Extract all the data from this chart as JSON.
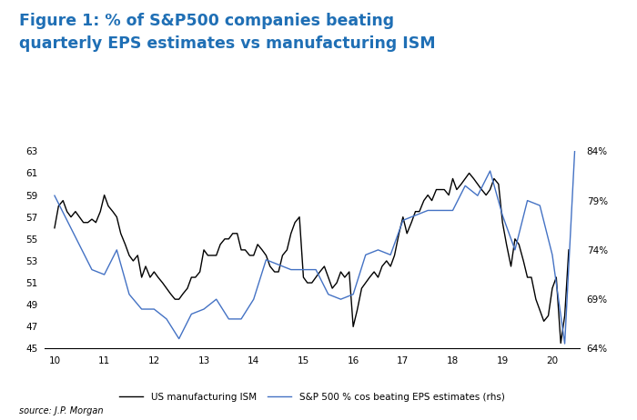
{
  "title_line1": "Figure 1: % of S&P500 companies beating",
  "title_line2": "quarterly EPS estimates vs manufacturing ISM",
  "title_color": "#1F6FB5",
  "source_text": "source: J.P. Morgan",
  "legend_ism": "US manufacturing ISM",
  "legend_eps": "S&P 500 % cos beating EPS estimates (rhs)",
  "ism_color": "#000000",
  "eps_color": "#4472C4",
  "ylim_left": [
    45,
    63
  ],
  "ylim_right": [
    64,
    84
  ],
  "yticks_left": [
    45,
    47,
    49,
    51,
    53,
    55,
    57,
    59,
    61,
    63
  ],
  "yticks_right": [
    64,
    69,
    74,
    79,
    84
  ],
  "xticks": [
    10,
    11,
    12,
    13,
    14,
    15,
    16,
    17,
    18,
    19,
    20
  ],
  "xlim": [
    9.8,
    20.55
  ],
  "ism_x": [
    10.0,
    10.08,
    10.17,
    10.25,
    10.33,
    10.42,
    10.5,
    10.58,
    10.67,
    10.75,
    10.83,
    10.92,
    11.0,
    11.08,
    11.17,
    11.25,
    11.33,
    11.42,
    11.5,
    11.58,
    11.67,
    11.75,
    11.83,
    11.92,
    12.0,
    12.08,
    12.17,
    12.25,
    12.33,
    12.42,
    12.5,
    12.58,
    12.67,
    12.75,
    12.83,
    12.92,
    13.0,
    13.08,
    13.17,
    13.25,
    13.33,
    13.42,
    13.5,
    13.58,
    13.67,
    13.75,
    13.83,
    13.92,
    14.0,
    14.08,
    14.17,
    14.25,
    14.33,
    14.42,
    14.5,
    14.58,
    14.67,
    14.75,
    14.83,
    14.92,
    15.0,
    15.08,
    15.17,
    15.25,
    15.33,
    15.42,
    15.5,
    15.58,
    15.67,
    15.75,
    15.83,
    15.92,
    16.0,
    16.08,
    16.17,
    16.25,
    16.33,
    16.42,
    16.5,
    16.58,
    16.67,
    16.75,
    16.83,
    16.92,
    17.0,
    17.08,
    17.17,
    17.25,
    17.33,
    17.42,
    17.5,
    17.58,
    17.67,
    17.75,
    17.83,
    17.92,
    18.0,
    18.08,
    18.17,
    18.25,
    18.33,
    18.42,
    18.5,
    18.58,
    18.67,
    18.75,
    18.83,
    18.92,
    19.0,
    19.08,
    19.17,
    19.25,
    19.33,
    19.42,
    19.5,
    19.58,
    19.67,
    19.75,
    19.83,
    19.92,
    20.0,
    20.08,
    20.17,
    20.25,
    20.33
  ],
  "ism_y": [
    56.0,
    58.0,
    58.5,
    57.5,
    57.0,
    57.5,
    57.0,
    56.5,
    56.5,
    56.8,
    56.5,
    57.5,
    59.0,
    58.0,
    57.5,
    57.0,
    55.5,
    54.5,
    53.5,
    53.0,
    53.5,
    51.5,
    52.5,
    51.5,
    52.0,
    51.5,
    51.0,
    50.5,
    50.0,
    49.5,
    49.5,
    50.0,
    50.5,
    51.5,
    51.5,
    52.0,
    54.0,
    53.5,
    53.5,
    53.5,
    54.5,
    55.0,
    55.0,
    55.5,
    55.5,
    54.0,
    54.0,
    53.5,
    53.5,
    54.5,
    54.0,
    53.5,
    52.5,
    52.0,
    52.0,
    53.5,
    54.0,
    55.5,
    56.5,
    57.0,
    51.5,
    51.0,
    51.0,
    51.5,
    52.0,
    52.5,
    51.5,
    50.5,
    51.0,
    52.0,
    51.5,
    52.0,
    47.0,
    48.5,
    50.5,
    51.0,
    51.5,
    52.0,
    51.5,
    52.5,
    53.0,
    52.5,
    53.5,
    55.5,
    57.0,
    55.5,
    56.5,
    57.5,
    57.5,
    58.5,
    59.0,
    58.5,
    59.5,
    59.5,
    59.5,
    59.0,
    60.5,
    59.5,
    60.0,
    60.5,
    61.0,
    60.5,
    60.0,
    59.5,
    59.0,
    59.5,
    60.5,
    60.0,
    56.5,
    54.5,
    52.5,
    55.0,
    54.5,
    53.0,
    51.5,
    51.5,
    49.5,
    48.5,
    47.5,
    48.0,
    50.5,
    51.5,
    45.5,
    48.0,
    54.0
  ],
  "eps_x": [
    10.0,
    10.25,
    10.5,
    10.75,
    11.0,
    11.25,
    11.5,
    11.75,
    12.0,
    12.25,
    12.5,
    12.75,
    13.0,
    13.25,
    13.5,
    13.75,
    14.0,
    14.25,
    14.5,
    14.75,
    15.0,
    15.25,
    15.5,
    15.75,
    16.0,
    16.25,
    16.5,
    16.75,
    17.0,
    17.25,
    17.5,
    17.75,
    18.0,
    18.25,
    18.5,
    18.75,
    19.0,
    19.25,
    19.5,
    19.75,
    20.0,
    20.25,
    20.45
  ],
  "eps_y": [
    79.5,
    77.0,
    74.5,
    72.0,
    71.5,
    74.0,
    69.5,
    68.0,
    68.0,
    67.0,
    65.0,
    67.5,
    68.0,
    69.0,
    67.0,
    67.0,
    69.0,
    73.0,
    72.5,
    72.0,
    72.0,
    72.0,
    69.5,
    69.0,
    69.5,
    73.5,
    74.0,
    73.5,
    77.0,
    77.5,
    78.0,
    78.0,
    78.0,
    80.5,
    79.5,
    82.0,
    77.5,
    74.0,
    79.0,
    78.5,
    73.5,
    64.5,
    84.0
  ]
}
